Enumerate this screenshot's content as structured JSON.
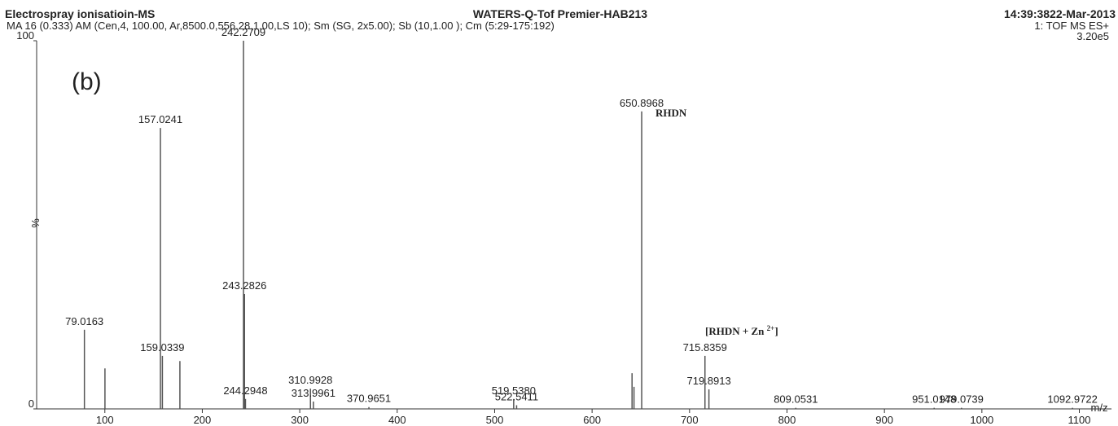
{
  "chart_data": {
    "type": "spectrum",
    "header": {
      "left": "Electrospray ionisatioin-MS",
      "center": "WATERS-Q-Tof Premier-HAB213",
      "right": "14:39:3822-Mar-2013",
      "subtitle": "MA 16 (0.333) AM (Cen,4, 100.00, Ar,8500.0,556.28,1.00,LS 10); Sm (SG, 2x5.00); Sb (10,1.00 ); Cm (5:29-175:192)",
      "mode": "1: TOF MS ES+",
      "intensity": "3.20e5"
    },
    "y_label": "%",
    "x_label": "m/z",
    "annotations": {
      "panel": "(b)",
      "rhdn": "RHDN",
      "complex": {
        "text": "[RHDN + Zn ",
        "sup": "2+",
        "close": "]"
      }
    },
    "xlim": [
      30,
      1133
    ],
    "ylim": [
      0,
      100
    ],
    "xticks": [
      100,
      200,
      300,
      400,
      500,
      600,
      700,
      800,
      900,
      1000,
      1100
    ],
    "yticks": [
      0,
      100
    ],
    "color": "#555555",
    "series": [
      {
        "name": "spectrum",
        "x": [
          79.0163,
          100.1,
          157.0241,
          159.0339,
          177.0,
          242.2709,
          243.2826,
          244.2948,
          310.9928,
          313.9961,
          370.9651,
          519.538,
          522.5411,
          641.0,
          643.0,
          650.8968,
          715.8359,
          719.8913,
          809.0531,
          951.0148,
          979.0739,
          1092.9722
        ],
        "values": [
          21.5,
          11,
          76.3,
          14.4,
          13,
          100,
          31.2,
          2.7,
          5.5,
          2,
          0.5,
          2.7,
          1,
          9.7,
          6,
          80.8,
          14.4,
          5.3,
          0.3,
          0.3,
          0.3,
          0.3
        ],
        "x_labels": [
          "79.0163",
          null,
          "157.0241",
          "159.0339",
          null,
          "242.2709",
          "243.2826",
          "244.2948",
          "310.9928",
          "313.9961",
          "370.9651",
          "519.5380",
          "522.5411",
          null,
          null,
          "650.8968",
          "715.8359",
          "719.8913",
          "809.0531",
          "951.0148",
          "979.0739",
          "1092.9722"
        ]
      }
    ]
  }
}
